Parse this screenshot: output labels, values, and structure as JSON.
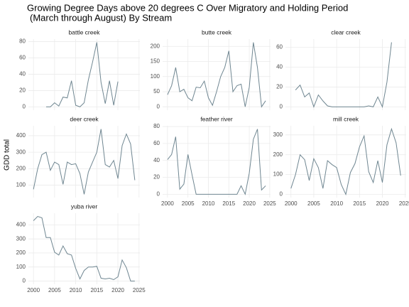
{
  "title": [
    "Growing Degree Days above 20 degrees C Over Migratory and Holding Period",
    "(March through August) By Stream"
  ],
  "ylabel": "GDD total",
  "chart_data": [
    {
      "type": "line",
      "title": "battle creek",
      "color": "#6f8691",
      "x": [
        2003,
        2004,
        2005,
        2006,
        2007,
        2008,
        2009,
        2010,
        2011,
        2012,
        2013,
        2014,
        2015,
        2016,
        2017,
        2018,
        2019,
        2020
      ],
      "values": [
        0,
        0,
        5,
        1,
        12,
        11,
        32,
        2,
        0,
        5,
        33,
        55,
        79,
        30,
        4,
        32,
        2,
        31
      ],
      "xlim": [
        1998.8,
        2025.2
      ],
      "xticks": [
        2000,
        2005,
        2010,
        2015,
        2020,
        2025
      ],
      "ylim": [
        -4,
        83
      ],
      "yticks": [
        0,
        20,
        40,
        60,
        80
      ]
    },
    {
      "type": "line",
      "title": "butte creek",
      "color": "#6f8691",
      "x": [
        2000,
        2001,
        2002,
        2003,
        2004,
        2005,
        2006,
        2007,
        2008,
        2009,
        2010,
        2011,
        2012,
        2013,
        2014,
        2015,
        2016,
        2017,
        2018,
        2019,
        2020,
        2021,
        2022,
        2023,
        2024
      ],
      "values": [
        40,
        70,
        130,
        50,
        58,
        30,
        20,
        65,
        63,
        85,
        30,
        5,
        50,
        100,
        130,
        185,
        50,
        70,
        75,
        0,
        65,
        213,
        130,
        0,
        20
      ],
      "xlim": [
        1998.8,
        2025.2
      ],
      "xticks": [
        2000,
        2005,
        2010,
        2015,
        2020,
        2025
      ],
      "ylim": [
        -11,
        224
      ],
      "yticks": [
        0,
        50,
        100,
        150,
        200
      ]
    },
    {
      "type": "line",
      "title": "clear creek",
      "color": "#6f8691",
      "x": [
        2001,
        2002,
        2003,
        2004,
        2005,
        2006,
        2007,
        2008,
        2009,
        2010,
        2011,
        2012,
        2013,
        2014,
        2015,
        2016,
        2017,
        2018,
        2019,
        2020,
        2021,
        2022
      ],
      "values": [
        17,
        22,
        10,
        14,
        0,
        12,
        6,
        1,
        0,
        0,
        0,
        0,
        0,
        0,
        0,
        0,
        1,
        0,
        10,
        0,
        25,
        65
      ],
      "xlim": [
        1998.8,
        2025.2
      ],
      "xticks": [
        2000,
        2005,
        2010,
        2015,
        2020,
        2025
      ],
      "ylim": [
        -3.3,
        68.3
      ],
      "yticks": [
        0,
        20,
        40,
        60
      ]
    },
    {
      "type": "line",
      "title": "deer creek",
      "color": "#6f8691",
      "x": [
        2000,
        2001,
        2002,
        2003,
        2004,
        2005,
        2006,
        2007,
        2008,
        2009,
        2010,
        2011,
        2012,
        2013,
        2014,
        2015,
        2016,
        2017,
        2018,
        2019,
        2020,
        2021,
        2022,
        2023,
        2024
      ],
      "values": [
        75,
        200,
        285,
        300,
        190,
        240,
        225,
        105,
        240,
        225,
        230,
        170,
        45,
        180,
        240,
        300,
        440,
        225,
        210,
        250,
        140,
        340,
        410,
        350,
        130
      ],
      "xlim": [
        1998.8,
        2025.2
      ],
      "xticks": [
        2000,
        2005,
        2010,
        2015,
        2020,
        2025
      ],
      "ylim": [
        25,
        460
      ],
      "yticks": [
        100,
        200,
        300,
        400
      ]
    },
    {
      "type": "line",
      "title": "feather river",
      "color": "#6f8691",
      "x": [
        2000,
        2001,
        2002,
        2003,
        2004,
        2005,
        2006,
        2007,
        2008,
        2009,
        2010,
        2011,
        2012,
        2013,
        2014,
        2015,
        2016,
        2017,
        2018,
        2019,
        2020,
        2021,
        2022,
        2023,
        2024
      ],
      "values": [
        41,
        47,
        68,
        6,
        12,
        47,
        23,
        0,
        0,
        0,
        0,
        0,
        0,
        0,
        0,
        0,
        0,
        0,
        10,
        0,
        25,
        65,
        77,
        5,
        10
      ],
      "xlim": [
        1998.8,
        2025.2
      ],
      "xticks": [
        2000,
        2005,
        2010,
        2015,
        2020,
        2025
      ],
      "ylim": [
        -3.9,
        80.9
      ],
      "yticks": [
        0,
        20,
        40,
        60,
        80
      ]
    },
    {
      "type": "line",
      "title": "mill creek",
      "color": "#6f8691",
      "x": [
        2000,
        2001,
        2002,
        2003,
        2004,
        2005,
        2006,
        2007,
        2008,
        2009,
        2010,
        2011,
        2012,
        2013,
        2014,
        2015,
        2016,
        2017,
        2018,
        2019,
        2020,
        2021,
        2022,
        2023,
        2024
      ],
      "values": [
        30,
        100,
        200,
        175,
        70,
        180,
        135,
        30,
        170,
        150,
        135,
        50,
        0,
        110,
        155,
        240,
        295,
        115,
        60,
        170,
        60,
        250,
        330,
        260,
        95
      ],
      "xlim": [
        1998.8,
        2025.2
      ],
      "xticks": [
        2000,
        2005,
        2010,
        2015,
        2020,
        2025
      ],
      "ylim": [
        -16,
        346
      ],
      "yticks": [
        0,
        100,
        200,
        300
      ]
    },
    {
      "type": "line",
      "title": "yuba river",
      "color": "#6f8691",
      "x": [
        2000,
        2001,
        2002,
        2003,
        2004,
        2005,
        2006,
        2007,
        2008,
        2009,
        2010,
        2011,
        2012,
        2013,
        2014,
        2015,
        2016,
        2017,
        2018,
        2019,
        2020,
        2021,
        2022,
        2023,
        2024
      ],
      "values": [
        430,
        460,
        450,
        310,
        310,
        205,
        185,
        250,
        195,
        185,
        90,
        15,
        75,
        100,
        100,
        105,
        20,
        15,
        20,
        10,
        30,
        150,
        95,
        0,
        0
      ],
      "xlim": [
        1998.8,
        2025.2
      ],
      "xticks": [
        2000,
        2005,
        2010,
        2015,
        2020,
        2025
      ],
      "ylim": [
        -23,
        483
      ],
      "yticks": [
        0,
        100,
        200,
        300,
        400
      ]
    }
  ]
}
